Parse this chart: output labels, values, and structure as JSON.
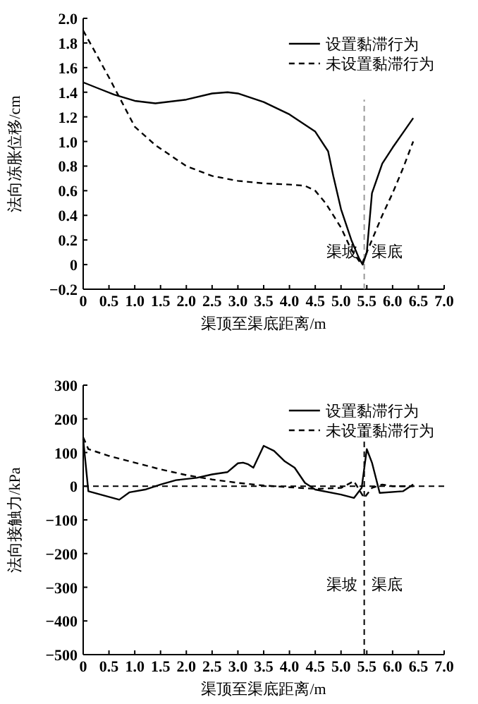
{
  "chart_data": [
    {
      "type": "line",
      "xlabel": "渠顶至渠底距离/m",
      "ylabel": "法向冻胀位移/cm",
      "legend": "top right",
      "grid": false,
      "xlim": [
        0,
        7
      ],
      "xticks": [
        0,
        0.5,
        {
          "value": 1,
          "label": "1.0"
        },
        1.5,
        {
          "value": 2,
          "label": "2.0"
        },
        2.5,
        {
          "value": 3,
          "label": "3.0"
        },
        3.5,
        {
          "value": 4,
          "label": "4.0"
        },
        4.5,
        {
          "value": 5,
          "label": "5.0"
        },
        5.5,
        {
          "value": 6,
          "label": "6.0"
        },
        6.5,
        {
          "value": 7,
          "label": "7.0"
        }
      ],
      "ylim": [
        -0.2,
        2
      ],
      "yticks": [
        {
          "value": -0.2,
          "label": "−0.2"
        },
        0,
        0.2,
        0.4,
        0.6,
        0.8,
        {
          "value": 1,
          "label": "1.0"
        },
        1.2,
        1.4,
        1.6,
        1.8,
        {
          "value": 2,
          "label": "2.0"
        }
      ],
      "series": [
        {
          "name": "设置黏滞行为",
          "color": "#000000",
          "line_style": "solid",
          "x": [
            0,
            0.3,
            0.6,
            1.0,
            1.4,
            2.0,
            2.5,
            2.8,
            3.0,
            3.5,
            4.0,
            4.5,
            4.75,
            4.85,
            5.0,
            5.2,
            5.35,
            5.42,
            5.5,
            5.6,
            5.8,
            6.0,
            6.2,
            6.4
          ],
          "values": [
            1.48,
            1.43,
            1.38,
            1.33,
            1.31,
            1.34,
            1.39,
            1.4,
            1.39,
            1.32,
            1.22,
            1.08,
            0.92,
            0.72,
            0.45,
            0.2,
            0.05,
            0.0,
            0.1,
            0.58,
            0.82,
            0.95,
            1.07,
            1.19
          ]
        },
        {
          "name": "未设置黏滞行为",
          "color": "#000000",
          "line_style": "dashed",
          "x": [
            0,
            0.2,
            0.5,
            0.8,
            1.0,
            1.4,
            2.0,
            2.5,
            3.0,
            3.5,
            4.0,
            4.3,
            4.5,
            4.7,
            5.0,
            5.2,
            5.4,
            5.6,
            5.8,
            6.0,
            6.2,
            6.4
          ],
          "values": [
            1.9,
            1.75,
            1.52,
            1.28,
            1.12,
            0.97,
            0.8,
            0.72,
            0.68,
            0.66,
            0.65,
            0.64,
            0.6,
            0.5,
            0.3,
            0.12,
            0.0,
            0.2,
            0.4,
            0.58,
            0.78,
            1.0
          ]
        }
      ],
      "ref_lines": [
        {
          "axis": "x",
          "value": 5.45,
          "color": "#999999",
          "line_style": "dashed"
        }
      ],
      "annotations": [
        "渠坡",
        "渠底"
      ]
    },
    {
      "type": "line",
      "xlabel": "渠顶至渠底距离/m",
      "ylabel": "法向接触力/kPa",
      "legend": "top right",
      "grid": false,
      "xlim": [
        0,
        7
      ],
      "xticks": [
        0,
        0.5,
        {
          "value": 1,
          "label": "1.0"
        },
        1.5,
        {
          "value": 2,
          "label": "2.0"
        },
        2.5,
        {
          "value": 3,
          "label": "3.0"
        },
        3.5,
        {
          "value": 4,
          "label": "4.0"
        },
        4.5,
        {
          "value": 5,
          "label": "5.0"
        },
        5.5,
        {
          "value": 6,
          "label": "6.0"
        },
        6.5,
        {
          "value": 7,
          "label": "7.0"
        }
      ],
      "ylim": [
        -500,
        300
      ],
      "yticks": [
        {
          "value": -500,
          "label": "−500"
        },
        {
          "value": -400,
          "label": "−400"
        },
        {
          "value": -300,
          "label": "−300"
        },
        {
          "value": -200,
          "label": "−200"
        },
        {
          "value": -100,
          "label": "−100"
        },
        0,
        100,
        200,
        300
      ],
      "series": [
        {
          "name": "设置黏滞行为",
          "color": "#000000",
          "line_style": "solid",
          "x": [
            0,
            0.1,
            0.7,
            0.9,
            1.2,
            1.5,
            1.8,
            2.2,
            2.5,
            2.8,
            3.0,
            3.1,
            3.2,
            3.3,
            3.5,
            3.7,
            3.9,
            4.1,
            4.3,
            4.5,
            5.0,
            5.25,
            5.4,
            5.5,
            5.6,
            5.75,
            6.2,
            6.4
          ],
          "values": [
            140,
            -15,
            -40,
            -18,
            -10,
            5,
            18,
            25,
            35,
            42,
            68,
            70,
            65,
            55,
            120,
            105,
            75,
            55,
            10,
            -10,
            -25,
            -35,
            -5,
            110,
            70,
            -20,
            -15,
            5
          ]
        },
        {
          "name": "未设置黏滞行为",
          "color": "#000000",
          "line_style": "dashed",
          "x": [
            0,
            0.1,
            0.5,
            1.0,
            1.5,
            2.0,
            2.5,
            3.0,
            3.5,
            4.0,
            4.5,
            5.0,
            5.25,
            5.35,
            5.45,
            5.6,
            5.8,
            6.0,
            6.4
          ],
          "values": [
            145,
            110,
            90,
            70,
            50,
            33,
            20,
            10,
            2,
            -3,
            -8,
            -5,
            15,
            -10,
            -35,
            -5,
            5,
            0,
            0
          ]
        }
      ],
      "ref_lines": [
        {
          "axis": "x",
          "value": 5.45,
          "color": "#000000",
          "line_style": "dashed"
        },
        {
          "axis": "y",
          "value": 0,
          "color": "#000000",
          "line_style": "dashed"
        }
      ],
      "annotations": [
        "渠坡",
        "渠底"
      ]
    }
  ]
}
